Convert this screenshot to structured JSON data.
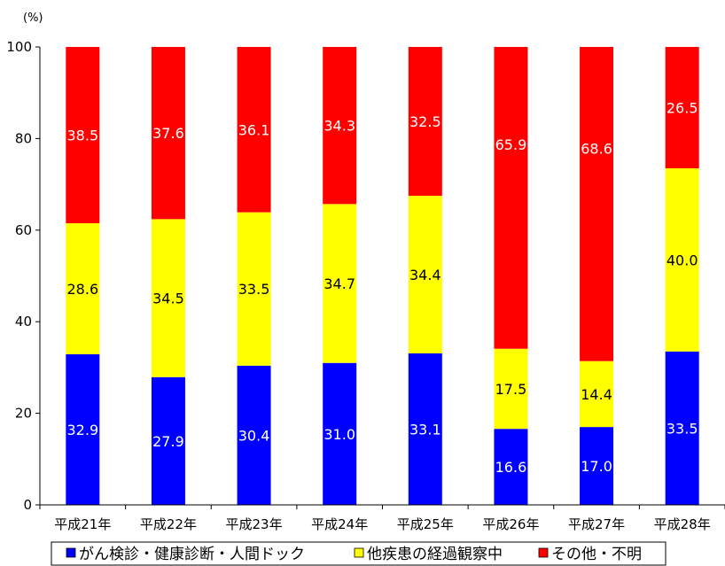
{
  "chart_data": {
    "type": "bar",
    "stacked": true,
    "unit_label": "(%)",
    "ylim": [
      0,
      100
    ],
    "yticks": [
      0,
      20,
      40,
      60,
      80,
      100
    ],
    "grid": false,
    "legend_position": "bottom",
    "categories": [
      "平成21年",
      "平成22年",
      "平成23年",
      "平成24年",
      "平成25年",
      "平成26年",
      "平成27年",
      "平成28年"
    ],
    "series": [
      {
        "name": "がん検診・健康診断・人間ドック",
        "color": "#0000ff",
        "label_color": "#ffffff",
        "values": [
          32.9,
          27.9,
          30.4,
          31.0,
          33.1,
          16.6,
          17.0,
          33.5
        ]
      },
      {
        "name": "他疾患の経過観察中",
        "color": "#ffff00",
        "label_color": "#000000",
        "values": [
          28.6,
          34.5,
          33.5,
          34.7,
          34.4,
          17.5,
          14.4,
          40.0
        ]
      },
      {
        "name": "その他・不明",
        "color": "#ff0000",
        "label_color": "#ffffff",
        "values": [
          38.5,
          37.6,
          36.1,
          34.3,
          32.5,
          65.9,
          68.6,
          26.5
        ]
      }
    ]
  }
}
